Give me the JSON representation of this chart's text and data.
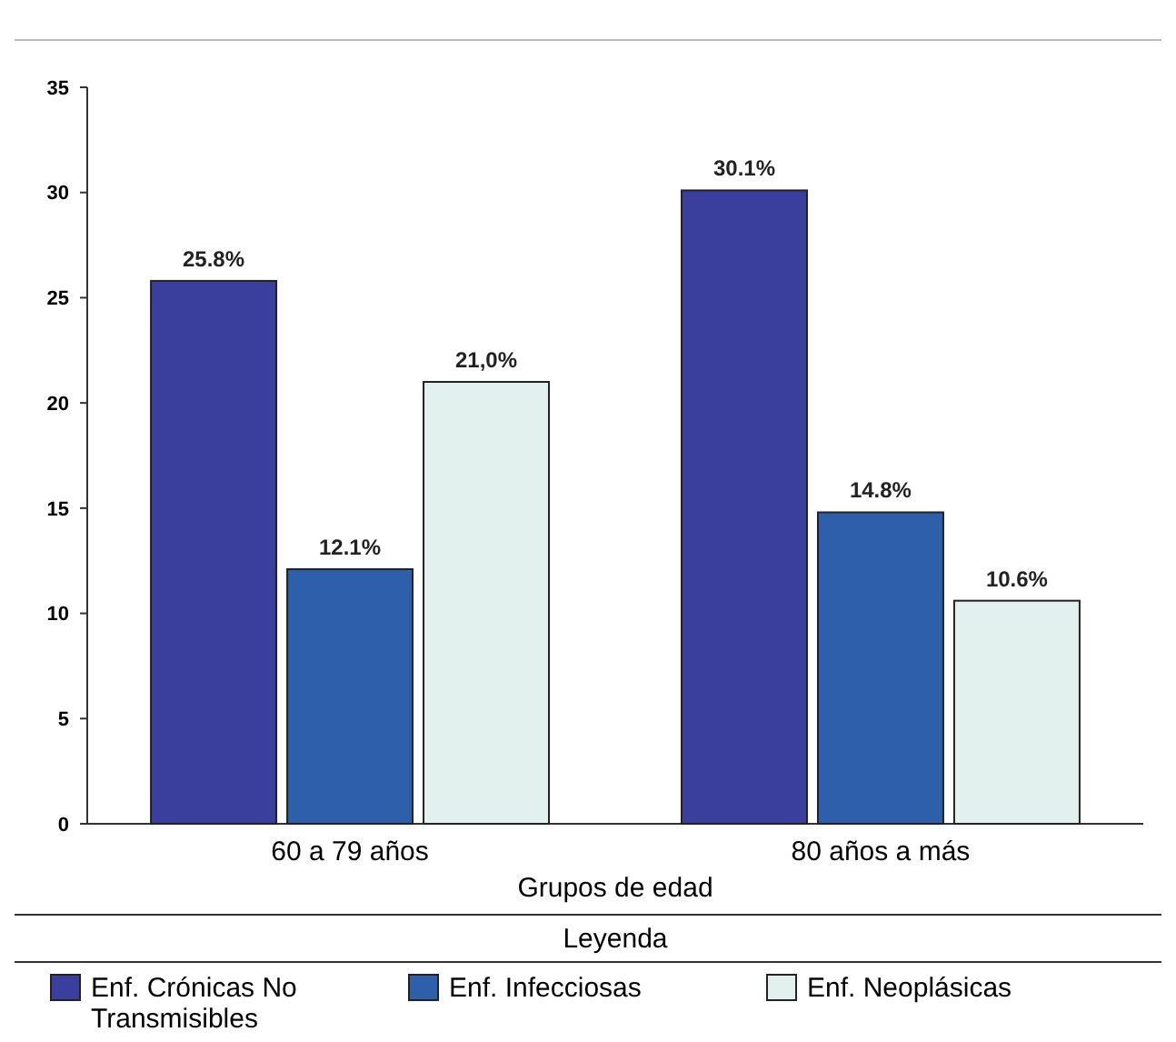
{
  "chart_data": {
    "type": "bar",
    "xlabel": "Grupos de edad",
    "legend_title": "Leyenda",
    "categories": [
      "60 a 79 años",
      "80 años a más"
    ],
    "series": [
      {
        "name": "Enf. Crónicas No Transmisibles",
        "color": "#3a3f9e",
        "values": [
          25.8,
          30.1
        ],
        "value_labels": [
          "25.8%",
          "30.1%"
        ]
      },
      {
        "name": "Enf. Infecciosas",
        "color": "#2d5fab",
        "values": [
          12.1,
          14.8
        ],
        "value_labels": [
          "12.1%",
          "14.8%"
        ]
      },
      {
        "name": "Enf. Neoplásicas",
        "color": "#e2f0ee",
        "values": [
          21.0,
          10.6
        ],
        "value_labels": [
          "21,0%",
          "10.6%"
        ]
      }
    ],
    "ylim": [
      0,
      35
    ],
    "yticks": [
      0,
      5,
      10,
      15,
      20,
      25,
      30,
      35
    ],
    "grid": false,
    "legend": "bottom"
  }
}
